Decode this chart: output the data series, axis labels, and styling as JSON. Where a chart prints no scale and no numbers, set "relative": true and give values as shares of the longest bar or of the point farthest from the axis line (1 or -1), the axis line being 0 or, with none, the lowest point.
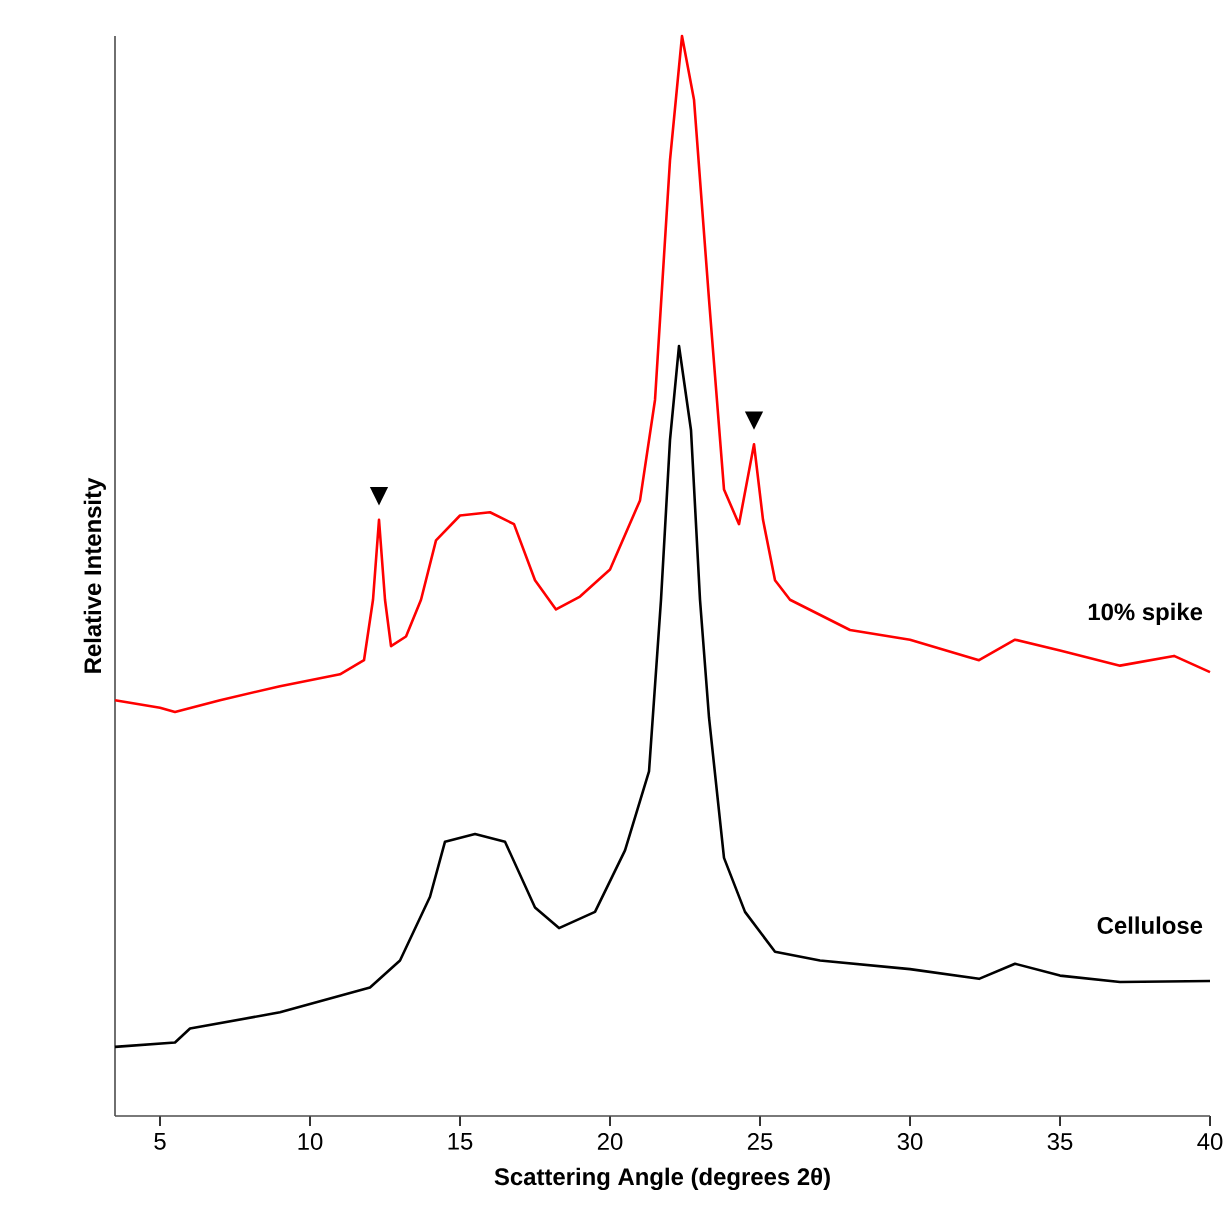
{
  "chart_data": {
    "type": "line",
    "relative": true,
    "xlabel": "Scattering Angle (degrees 2θ)",
    "ylabel": "Relative Intensity",
    "xlim": [
      3.5,
      40
    ],
    "xticks": [
      5,
      10,
      15,
      20,
      25,
      30,
      35,
      40
    ],
    "grid": false,
    "legend": false,
    "marker": "none",
    "line_style": "solid",
    "series": [
      {
        "name": "10% spike",
        "color": "#ff0000",
        "x": [
          3.5,
          5,
          5.5,
          7,
          9,
          11,
          11.8,
          12.1,
          12.3,
          12.5,
          12.7,
          13.2,
          13.7,
          14.2,
          15,
          16,
          16.8,
          17.5,
          18.2,
          19,
          20,
          21,
          21.5,
          22,
          22.4,
          22.8,
          23.3,
          23.8,
          24.3,
          24.8,
          25.1,
          25.5,
          26,
          28,
          30,
          32.3,
          33.5,
          35,
          37,
          38.8,
          40
        ],
        "values": [
          0.385,
          0.378,
          0.374,
          0.385,
          0.398,
          0.409,
          0.422,
          0.478,
          0.552,
          0.478,
          0.435,
          0.444,
          0.478,
          0.533,
          0.556,
          0.559,
          0.548,
          0.496,
          0.469,
          0.481,
          0.506,
          0.57,
          0.663,
          0.885,
          1.0,
          0.941,
          0.756,
          0.58,
          0.548,
          0.622,
          0.552,
          0.496,
          0.478,
          0.45,
          0.441,
          0.422,
          0.441,
          0.431,
          0.417,
          0.426,
          0.411
        ]
      },
      {
        "name": "Cellulose",
        "color": "#000000",
        "x": [
          3.5,
          5.5,
          6,
          9,
          12,
          13,
          14,
          14.5,
          15.5,
          16.5,
          17.5,
          18.3,
          19.5,
          20.5,
          21.3,
          21.7,
          22,
          22.3,
          22.7,
          23,
          23.3,
          23.8,
          24.5,
          25.5,
          27,
          30,
          32.3,
          33.5,
          35,
          37,
          40
        ],
        "values": [
          0.064,
          0.068,
          0.081,
          0.096,
          0.119,
          0.144,
          0.203,
          0.254,
          0.261,
          0.254,
          0.193,
          0.174,
          0.189,
          0.246,
          0.319,
          0.478,
          0.626,
          0.713,
          0.635,
          0.478,
          0.369,
          0.239,
          0.189,
          0.152,
          0.144,
          0.136,
          0.127,
          0.141,
          0.13,
          0.124,
          0.125
        ]
      }
    ],
    "annotations": [
      {
        "text": "▼",
        "x": 12.3,
        "y": 0.552
      },
      {
        "text": "▼",
        "x": 24.8,
        "y": 0.622
      }
    ]
  }
}
